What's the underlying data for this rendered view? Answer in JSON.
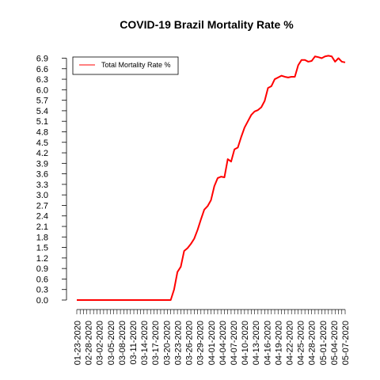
{
  "chart_data": {
    "type": "line",
    "title": "COVID-19 Brazil Mortality Rate %",
    "xlabel": "",
    "ylabel": "",
    "ylim": [
      0,
      6.9
    ],
    "legend": {
      "position": "top-left",
      "entries": [
        "Total Mortality Rate %"
      ]
    },
    "grid": false,
    "y_ticks": [
      "0.0",
      "0.3",
      "0.6",
      "0.9",
      "1.2",
      "1.5",
      "1.8",
      "2.1",
      "2.4",
      "2.7",
      "3.0",
      "3.3",
      "3.6",
      "3.9",
      "4.2",
      "4.5",
      "4.8",
      "5.1",
      "5.4",
      "5.7",
      "6.0",
      "6.3",
      "6.6",
      "6.9"
    ],
    "x_tick_labels": [
      "01-23-2020",
      "02-28-2020",
      "03-02-2020",
      "03-05-2020",
      "03-08-2020",
      "03-11-2020",
      "03-14-2020",
      "03-17-2020",
      "03-20-2020",
      "03-23-2020",
      "03-26-2020",
      "03-29-2020",
      "04-01-2020",
      "04-04-2020",
      "04-07-2020",
      "04-10-2020",
      "04-13-2020",
      "04-16-2020",
      "04-19-2020",
      "04-22-2020",
      "04-25-2020",
      "04-28-2020",
      "05-01-2020",
      "05-04-2020",
      "05-07-2020"
    ],
    "series": [
      {
        "name": "Total Mortality Rate %",
        "color": "#ff0000",
        "values": [
          0,
          0,
          0,
          0,
          0,
          0,
          0,
          0,
          0,
          0,
          0,
          0,
          0,
          0,
          0,
          0,
          0,
          0,
          0,
          0,
          0,
          0,
          0,
          0,
          0,
          0,
          0,
          0,
          0,
          0.3,
          0.8,
          0.95,
          1.4,
          1.48,
          1.6,
          1.75,
          2.0,
          2.3,
          2.58,
          2.68,
          2.85,
          3.25,
          3.48,
          3.52,
          3.5,
          4.02,
          3.95,
          4.3,
          4.35,
          4.65,
          4.92,
          5.1,
          5.28,
          5.38,
          5.42,
          5.5,
          5.68,
          6.05,
          6.1,
          6.3,
          6.35,
          6.4,
          6.37,
          6.35,
          6.37,
          6.37,
          6.7,
          6.85,
          6.85,
          6.8,
          6.82,
          6.95,
          6.93,
          6.9,
          6.95,
          6.97,
          6.95,
          6.8,
          6.9,
          6.8,
          6.78
        ]
      }
    ]
  }
}
